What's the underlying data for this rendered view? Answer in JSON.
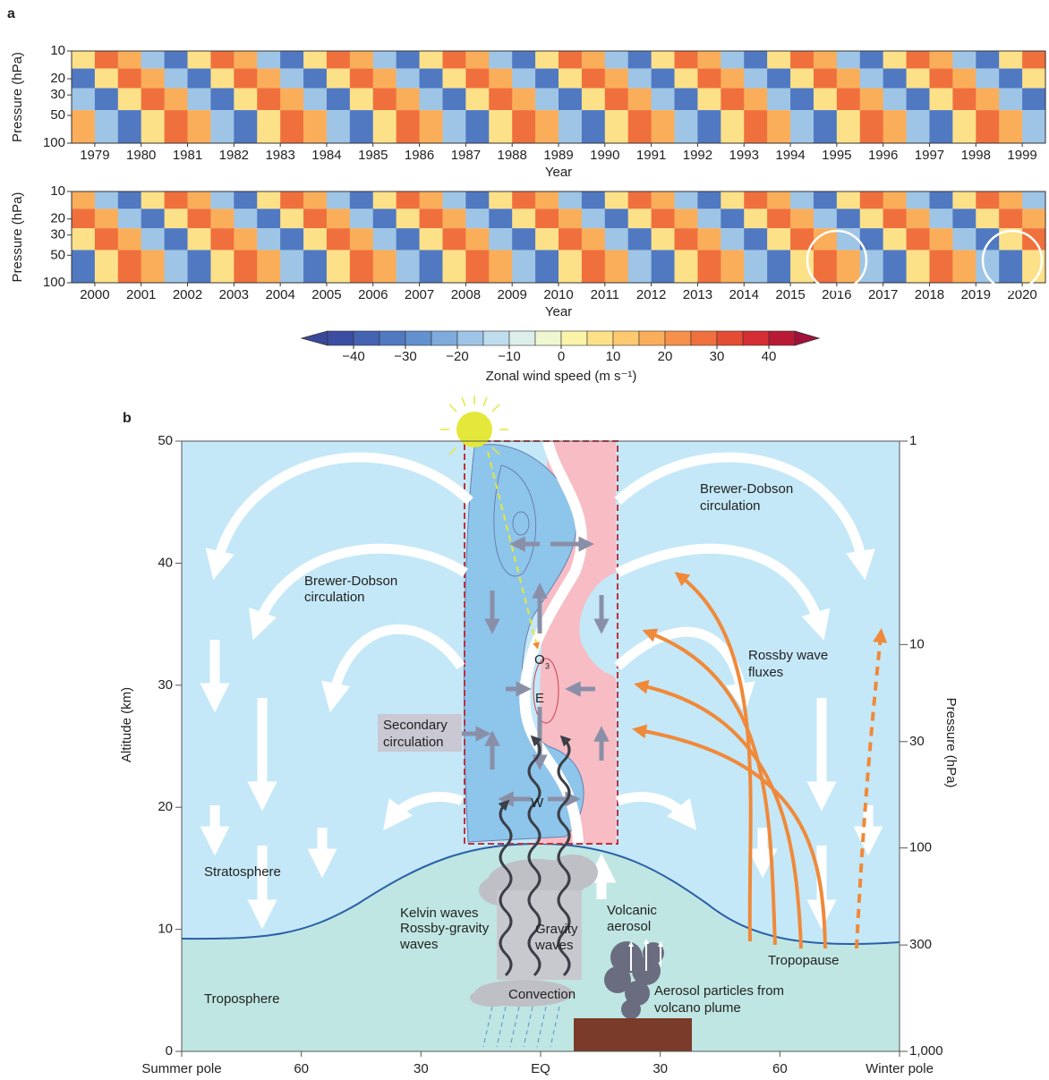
{
  "chart_data": [
    {
      "type": "heatmap",
      "panel": "a",
      "ylabel": "Pressure (hPa)",
      "xlabel": "Year",
      "yscale": "log",
      "ylim": [
        100,
        10
      ],
      "yticks": [
        10,
        20,
        30,
        50,
        100
      ],
      "xlim": [
        1979,
        2000
      ],
      "xticks": [
        {
          "value": 1979.5,
          "label": "1979"
        },
        {
          "value": 1980.5,
          "label": "1980"
        },
        {
          "value": 1981.5,
          "label": "1981"
        },
        {
          "value": 1982.5,
          "label": "1982"
        },
        {
          "value": 1983.5,
          "label": "1983"
        },
        {
          "value": 1984.5,
          "label": "1984"
        },
        {
          "value": 1985.5,
          "label": "1985"
        },
        {
          "value": 1986.5,
          "label": "1986"
        },
        {
          "value": 1987.5,
          "label": "1987"
        },
        {
          "value": 1988.5,
          "label": "1988"
        },
        {
          "value": 1989.5,
          "label": "1989"
        },
        {
          "value": 1990.5,
          "label": "1990"
        },
        {
          "value": 1991.5,
          "label": "1991"
        },
        {
          "value": 1992.5,
          "label": "1992"
        },
        {
          "value": 1993.5,
          "label": "1993"
        },
        {
          "value": 1994.5,
          "label": "1994"
        },
        {
          "value": 1995.5,
          "label": "1995"
        },
        {
          "value": 1996.5,
          "label": "1996"
        },
        {
          "value": 1997.5,
          "label": "1997"
        },
        {
          "value": 1998.5,
          "label": "1998"
        },
        {
          "value": 1999.5,
          "label": "1999"
        }
      ],
      "levels": [
        12,
        20,
        32,
        60
      ],
      "values": [
        [
          5,
          25,
          15,
          -20,
          -35,
          5,
          25,
          15,
          -20,
          -35,
          5,
          25,
          15,
          -20,
          -35,
          5,
          25,
          15,
          -20,
          -35,
          5,
          25,
          15,
          -20,
          -35,
          5,
          25,
          15,
          -20,
          -35,
          5,
          25,
          15,
          -20,
          -35,
          5,
          25,
          15,
          -20,
          -35,
          5,
          25
        ],
        [
          -35,
          5,
          25,
          15,
          -20,
          -35,
          5,
          25,
          15,
          -20,
          -35,
          5,
          25,
          15,
          -20,
          -35,
          5,
          25,
          15,
          -20,
          -35,
          5,
          25,
          15,
          -20,
          -35,
          5,
          25,
          15,
          -20,
          -35,
          5,
          25,
          15,
          -20,
          -35,
          5,
          25,
          15,
          -20,
          -35,
          5
        ],
        [
          -20,
          -35,
          5,
          25,
          15,
          -20,
          -35,
          5,
          25,
          15,
          -20,
          -35,
          5,
          25,
          15,
          -20,
          -35,
          5,
          25,
          15,
          -20,
          -35,
          5,
          25,
          15,
          -20,
          -35,
          5,
          25,
          15,
          -20,
          -35,
          5,
          25,
          15,
          -20,
          -35,
          5,
          25,
          15,
          -20,
          -35
        ],
        [
          15,
          -20,
          -35,
          5,
          25,
          15,
          -20,
          -35,
          5,
          25,
          15,
          -20,
          -35,
          5,
          25,
          15,
          -20,
          -35,
          5,
          25,
          15,
          -20,
          -35,
          5,
          25,
          15,
          -20,
          -35,
          5,
          25,
          15,
          -20,
          -35,
          5,
          25,
          15,
          -20,
          -35,
          5,
          25,
          15,
          -20
        ]
      ]
    },
    {
      "type": "heatmap",
      "ylabel": "Pressure (hPa)",
      "xlabel": "Year",
      "yscale": "log",
      "ylim": [
        100,
        10
      ],
      "yticks": [
        10,
        20,
        30,
        50,
        100
      ],
      "xlim": [
        2000,
        2021
      ],
      "xticks": [
        {
          "value": 2000.5,
          "label": "2000"
        },
        {
          "value": 2001.5,
          "label": "2001"
        },
        {
          "value": 2002.5,
          "label": "2002"
        },
        {
          "value": 2003.5,
          "label": "2003"
        },
        {
          "value": 2004.5,
          "label": "2004"
        },
        {
          "value": 2005.5,
          "label": "2005"
        },
        {
          "value": 2006.5,
          "label": "2006"
        },
        {
          "value": 2007.5,
          "label": "2007"
        },
        {
          "value": 2008.5,
          "label": "2008"
        },
        {
          "value": 2009.5,
          "label": "2009"
        },
        {
          "value": 2010.5,
          "label": "2010"
        },
        {
          "value": 2011.5,
          "label": "2011"
        },
        {
          "value": 2012.5,
          "label": "2012"
        },
        {
          "value": 2013.5,
          "label": "2013"
        },
        {
          "value": 2014.5,
          "label": "2014"
        },
        {
          "value": 2015.5,
          "label": "2015"
        },
        {
          "value": 2016.5,
          "label": "2016"
        },
        {
          "value": 2017.5,
          "label": "2017"
        },
        {
          "value": 2018.5,
          "label": "2018"
        },
        {
          "value": 2019.5,
          "label": "2019"
        },
        {
          "value": 2020.5,
          "label": "2020"
        }
      ],
      "levels": [
        12,
        20,
        32,
        60
      ],
      "values": [
        [
          15,
          -20,
          -35,
          5,
          25,
          15,
          -20,
          -35,
          5,
          25,
          15,
          -20,
          -35,
          5,
          25,
          15,
          -20,
          -35,
          5,
          25,
          15,
          -20,
          -35,
          5,
          25,
          15,
          -20,
          -35,
          5,
          25,
          15,
          -20,
          -35,
          5,
          25,
          15,
          -20,
          -35,
          5,
          25,
          15,
          -20
        ],
        [
          25,
          15,
          -20,
          -35,
          5,
          25,
          15,
          -20,
          -35,
          5,
          25,
          15,
          -20,
          -35,
          5,
          25,
          15,
          -20,
          -35,
          5,
          25,
          15,
          -20,
          -35,
          5,
          25,
          15,
          -20,
          -35,
          5,
          25,
          15,
          -20,
          -35,
          5,
          25,
          15,
          -20,
          -35,
          5,
          25,
          15
        ],
        [
          5,
          25,
          15,
          -20,
          -35,
          5,
          25,
          15,
          -20,
          -35,
          5,
          25,
          15,
          -20,
          -35,
          5,
          25,
          15,
          -20,
          -35,
          5,
          25,
          15,
          -20,
          -35,
          5,
          25,
          15,
          -20,
          -35,
          5,
          25,
          15,
          -20,
          -35,
          5,
          25,
          15,
          -20,
          -35,
          5,
          25
        ],
        [
          -35,
          5,
          25,
          15,
          -20,
          -35,
          5,
          25,
          15,
          -20,
          -35,
          5,
          25,
          15,
          -20,
          -35,
          5,
          25,
          15,
          -20,
          -35,
          5,
          25,
          15,
          -20,
          -35,
          5,
          25,
          15,
          -20,
          -35,
          5,
          25,
          15,
          -20,
          -35,
          5,
          25,
          15,
          -20,
          -35,
          5
        ]
      ]
    }
  ],
  "colorbar": {
    "label": "Zonal wind speed (m s⁻¹)",
    "bounds": [
      -45,
      -40,
      -35,
      -30,
      -25,
      -20,
      -15,
      -10,
      -5,
      0,
      5,
      10,
      15,
      20,
      25,
      30,
      35,
      40,
      45
    ],
    "colors": [
      "#3b4ea2",
      "#4563b3",
      "#5079c2",
      "#6391cf",
      "#7eabdb",
      "#9ec5e6",
      "#c0dded",
      "#dcefea",
      "#eef7d2",
      "#fbf4a8",
      "#fde189",
      "#fcc870",
      "#faae5a",
      "#f6904a",
      "#f0703d",
      "#e54c34",
      "#d42d33",
      "#b81a36"
    ],
    "under": "#3a4899",
    "over": "#a0123a",
    "ticks": [
      {
        "value": -40,
        "label": "−40"
      },
      {
        "value": -30,
        "label": "−30"
      },
      {
        "value": -20,
        "label": "−20"
      },
      {
        "value": -10,
        "label": "−10"
      },
      0,
      10,
      20,
      30,
      40
    ]
  },
  "diagram": {
    "panel": "b",
    "ylabel": "Altitude (km)",
    "y2label": "Pressure (hPa)",
    "ylim": [
      0,
      50
    ],
    "yticks": [
      0,
      10,
      20,
      30,
      40,
      50
    ],
    "y2scale": "log",
    "y2lim": [
      1000,
      1
    ],
    "y2ticks": [
      1,
      10,
      30,
      100,
      300,
      {
        "value": 1000,
        "label": "1,000"
      }
    ],
    "xlim": [
      -90,
      90
    ],
    "xticks": [
      {
        "value": -90,
        "label": "Summer pole"
      },
      {
        "value": -60,
        "label": "60"
      },
      {
        "value": -30,
        "label": "30"
      },
      {
        "value": 0,
        "label": "EQ"
      },
      30,
      60,
      {
        "value": 90,
        "label": "Winter pole"
      }
    ],
    "labels": {
      "brewer_dobson_right": [
        "Brewer-Dobson",
        "circulation"
      ],
      "brewer_dobson_left": [
        "Brewer-Dobson",
        "circulation"
      ],
      "secondary": [
        "Secondary",
        "circulation"
      ],
      "rossby_fluxes": [
        "Rossby wave",
        "fluxes"
      ],
      "stratosphere": "Stratosphere",
      "troposphere": "Troposphere",
      "kelvin": "Kelvin waves",
      "rossby_gravity": [
        "Rossby-gravity",
        "waves"
      ],
      "gravity": [
        "Gravity",
        "waves"
      ],
      "volcanic": [
        "Volcanic",
        "aerosol"
      ],
      "convection": "Convection",
      "aerosol_particles": [
        "Aerosol particles from",
        "volcano plume"
      ],
      "tropopause": "Tropopause",
      "ozone": {
        "text": "O",
        "subscript": "3"
      },
      "easterly": "E",
      "westerly": "W"
    }
  }
}
